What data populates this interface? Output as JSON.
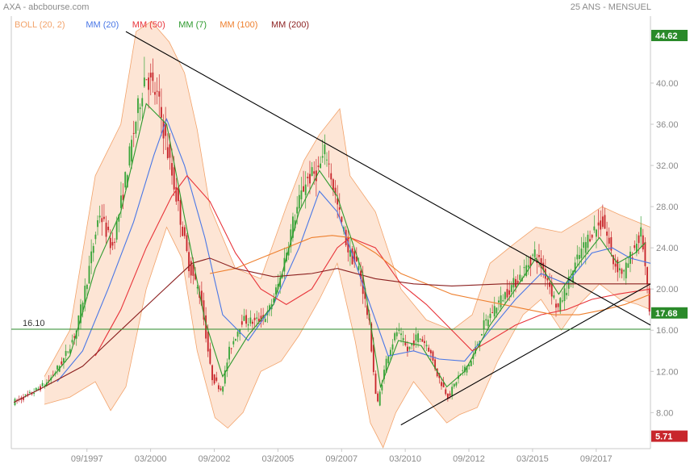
{
  "header": {
    "left": "AXA - abcbourse.com",
    "right": "25 ANS - MENSUEL"
  },
  "legend": [
    {
      "label": "BOLL (20, 2)",
      "color": "#f2a36b"
    },
    {
      "label": "MM (20)",
      "color": "#4a77e6"
    },
    {
      "label": "MM (50)",
      "color": "#e8343a"
    },
    {
      "label": "MM (7)",
      "color": "#2e9a2e"
    },
    {
      "label": "MM (100)",
      "color": "#ee7f2d"
    },
    {
      "label": "MM (200)",
      "color": "#8b1f1f"
    }
  ],
  "colors": {
    "up_candle": "#3aa53a",
    "down_candle": "#c8262c",
    "boll_fill": "#fde5d5",
    "boll_line": "#f2a36b",
    "support_line": "#2a8a2a",
    "trendline": "#000000",
    "high_box": "#2a8a2a",
    "last_box": "#2a8a2a",
    "low_box": "#c8262c"
  },
  "chart_data": {
    "type": "candlestick",
    "title": "AXA",
    "x_tick_labels": [
      "09/1997",
      "03/2000",
      "09/2002",
      "03/2005",
      "09/2007",
      "03/2010",
      "09/2012",
      "03/2015",
      "09/2017"
    ],
    "y_ticks": [
      8.0,
      12.0,
      16.0,
      20.0,
      24.0,
      28.0,
      32.0,
      36.0,
      40.0
    ],
    "y_tick_labels": [
      "8.00",
      "12.00",
      "16.00",
      "20.00",
      "24.00",
      "28.00",
      "32.00",
      "36.00",
      "40.00"
    ],
    "ylim": [
      4.5,
      46.5
    ],
    "xlim": [
      1994.7,
      2019.8
    ],
    "grid": false,
    "legend_position": "top-left",
    "support_level": {
      "value": 16.1,
      "label": "16.10"
    },
    "high_marker": {
      "value": 44.62,
      "label": "44.62"
    },
    "last_marker": {
      "value": 17.68,
      "label": "17.68"
    },
    "low_marker": {
      "value": 5.71,
      "label": "5.71"
    },
    "trendlines": [
      {
        "name": "descending resistance",
        "points": [
          [
            1999.2,
            45.0
          ],
          [
            2019.8,
            16.5
          ]
        ]
      },
      {
        "name": "ascending support",
        "points": [
          [
            2010.0,
            6.8
          ],
          [
            2019.8,
            20.5
          ]
        ]
      }
    ],
    "price_anchors": [
      [
        1994.8,
        9.0
      ],
      [
        1995.5,
        9.8
      ],
      [
        1996.2,
        11.0
      ],
      [
        1996.8,
        13.2
      ],
      [
        1997.3,
        16.0
      ],
      [
        1997.8,
        22.0
      ],
      [
        1998.2,
        27.5
      ],
      [
        1998.7,
        24.0
      ],
      [
        1999.1,
        29.0
      ],
      [
        1999.6,
        36.0
      ],
      [
        2000.0,
        41.0
      ],
      [
        2000.5,
        38.5
      ],
      [
        2000.9,
        33.0
      ],
      [
        2001.3,
        28.0
      ],
      [
        2001.7,
        22.5
      ],
      [
        2002.2,
        19.0
      ],
      [
        2002.6,
        11.5
      ],
      [
        2003.0,
        10.2
      ],
      [
        2003.3,
        14.0
      ],
      [
        2003.8,
        17.0
      ],
      [
        2004.3,
        16.8
      ],
      [
        2004.8,
        17.5
      ],
      [
        2005.3,
        21.0
      ],
      [
        2005.8,
        26.5
      ],
      [
        2006.3,
        30.5
      ],
      [
        2006.8,
        31.5
      ],
      [
        2007.1,
        33.5
      ],
      [
        2007.5,
        28.5
      ],
      [
        2008.0,
        23.5
      ],
      [
        2008.4,
        22.0
      ],
      [
        2008.8,
        16.5
      ],
      [
        2009.1,
        8.5
      ],
      [
        2009.5,
        13.5
      ],
      [
        2009.9,
        16.0
      ],
      [
        2010.3,
        14.0
      ],
      [
        2010.7,
        15.5
      ],
      [
        2011.1,
        14.5
      ],
      [
        2011.5,
        11.5
      ],
      [
        2011.9,
        9.5
      ],
      [
        2012.3,
        11.5
      ],
      [
        2012.8,
        13.0
      ],
      [
        2013.3,
        16.5
      ],
      [
        2013.8,
        18.5
      ],
      [
        2014.3,
        20.0
      ],
      [
        2014.8,
        21.5
      ],
      [
        2015.3,
        23.5
      ],
      [
        2015.8,
        21.0
      ],
      [
        2016.2,
        18.0
      ],
      [
        2016.6,
        20.5
      ],
      [
        2017.0,
        23.0
      ],
      [
        2017.5,
        25.5
      ],
      [
        2018.0,
        26.5
      ],
      [
        2018.4,
        22.5
      ],
      [
        2018.8,
        21.5
      ],
      [
        2019.2,
        24.0
      ],
      [
        2019.5,
        25.5
      ],
      [
        2019.8,
        17.7
      ]
    ],
    "moving_averages": [
      {
        "name": "MM (20)",
        "points": [
          [
            1996.5,
            11.0
          ],
          [
            1997.5,
            14.0
          ],
          [
            1998.5,
            20.0
          ],
          [
            1999.5,
            26.5
          ],
          [
            2000.3,
            33.0
          ],
          [
            2000.8,
            36.5
          ],
          [
            2001.5,
            32.0
          ],
          [
            2002.3,
            25.0
          ],
          [
            2003.0,
            17.5
          ],
          [
            2004.0,
            15.0
          ],
          [
            2005.0,
            18.5
          ],
          [
            2006.0,
            24.0
          ],
          [
            2006.8,
            29.5
          ],
          [
            2007.5,
            27.5
          ],
          [
            2008.5,
            20.5
          ],
          [
            2009.5,
            13.5
          ],
          [
            2010.5,
            14.0
          ],
          [
            2011.5,
            13.2
          ],
          [
            2012.5,
            13.0
          ],
          [
            2013.5,
            16.0
          ],
          [
            2014.5,
            19.0
          ],
          [
            2015.5,
            21.5
          ],
          [
            2016.5,
            20.5
          ],
          [
            2017.5,
            23.5
          ],
          [
            2018.3,
            24.0
          ],
          [
            2019.0,
            23.0
          ],
          [
            2019.8,
            22.5
          ]
        ]
      },
      {
        "name": "MM (50)",
        "points": [
          [
            1998.0,
            13.5
          ],
          [
            1999.0,
            18.0
          ],
          [
            2000.0,
            24.0
          ],
          [
            2001.0,
            29.0
          ],
          [
            2001.6,
            31.0
          ],
          [
            2002.5,
            28.5
          ],
          [
            2003.5,
            23.5
          ],
          [
            2004.5,
            20.0
          ],
          [
            2005.5,
            18.5
          ],
          [
            2006.5,
            20.0
          ],
          [
            2007.5,
            24.0
          ],
          [
            2008.0,
            25.0
          ],
          [
            2009.0,
            24.0
          ],
          [
            2010.0,
            20.5
          ],
          [
            2011.0,
            18.5
          ],
          [
            2012.0,
            16.0
          ],
          [
            2012.8,
            14.0
          ],
          [
            2013.5,
            15.0
          ],
          [
            2014.5,
            16.5
          ],
          [
            2015.5,
            17.5
          ],
          [
            2016.5,
            18.0
          ],
          [
            2017.5,
            19.0
          ],
          [
            2018.5,
            19.5
          ],
          [
            2019.8,
            20.0
          ]
        ]
      },
      {
        "name": "MM (100)",
        "points": [
          [
            2002.5,
            21.5
          ],
          [
            2003.5,
            22.0
          ],
          [
            2004.5,
            23.0
          ],
          [
            2005.5,
            24.0
          ],
          [
            2006.5,
            25.0
          ],
          [
            2007.3,
            25.2
          ],
          [
            2008.0,
            25.0
          ],
          [
            2009.0,
            23.5
          ],
          [
            2010.0,
            21.5
          ],
          [
            2011.0,
            20.5
          ],
          [
            2012.0,
            19.5
          ],
          [
            2013.0,
            19.0
          ],
          [
            2014.0,
            18.5
          ],
          [
            2015.0,
            18.0
          ],
          [
            2016.0,
            17.5
          ],
          [
            2017.0,
            17.5
          ],
          [
            2018.0,
            18.0
          ],
          [
            2018.8,
            18.5
          ],
          [
            2019.8,
            19.5
          ]
        ]
      },
      {
        "name": "MM (200)",
        "points": [
          [
            1994.8,
            9.0
          ],
          [
            1996.0,
            10.5
          ],
          [
            1997.5,
            12.5
          ],
          [
            1999.0,
            16.0
          ],
          [
            2000.5,
            19.5
          ],
          [
            2001.8,
            22.5
          ],
          [
            2002.5,
            23.0
          ],
          [
            2003.5,
            22.0
          ],
          [
            2005.0,
            21.2
          ],
          [
            2006.5,
            21.5
          ],
          [
            2007.5,
            22.0
          ],
          [
            2009.0,
            21.0
          ],
          [
            2010.5,
            20.5
          ],
          [
            2012.0,
            20.3
          ],
          [
            2014.0,
            20.5
          ],
          [
            2016.0,
            20.5
          ],
          [
            2018.0,
            20.5
          ],
          [
            2019.8,
            20.5
          ]
        ]
      },
      {
        "name": "MM (7)",
        "points": [
          [
            1996.0,
            10.5
          ],
          [
            1997.0,
            13.5
          ],
          [
            1998.0,
            22.0
          ],
          [
            1999.0,
            27.5
          ],
          [
            2000.0,
            38.0
          ],
          [
            2000.8,
            36.0
          ],
          [
            2001.5,
            27.0
          ],
          [
            2002.3,
            17.0
          ],
          [
            2003.0,
            11.5
          ],
          [
            2004.0,
            15.5
          ],
          [
            2005.0,
            18.5
          ],
          [
            2006.0,
            27.5
          ],
          [
            2006.8,
            31.5
          ],
          [
            2007.5,
            29.0
          ],
          [
            2008.5,
            21.5
          ],
          [
            2009.2,
            10.5
          ],
          [
            2009.9,
            15.0
          ],
          [
            2010.8,
            14.5
          ],
          [
            2011.8,
            10.5
          ],
          [
            2012.5,
            12.0
          ],
          [
            2013.5,
            16.5
          ],
          [
            2014.5,
            20.0
          ],
          [
            2015.3,
            23.0
          ],
          [
            2016.2,
            19.5
          ],
          [
            2017.0,
            22.5
          ],
          [
            2017.8,
            25.0
          ],
          [
            2018.5,
            22.5
          ],
          [
            2019.2,
            23.5
          ],
          [
            2019.6,
            24.5
          ]
        ]
      }
    ],
    "bollinger": {
      "upper": [
        [
          1996.0,
          11.5
        ],
        [
          1997.0,
          16.0
        ],
        [
          1998.0,
          31.0
        ],
        [
          1999.0,
          36.0
        ],
        [
          1999.6,
          45.0
        ],
        [
          2000.2,
          46.0
        ],
        [
          2000.9,
          44.0
        ],
        [
          2001.5,
          41.0
        ],
        [
          2002.0,
          35.5
        ],
        [
          2002.5,
          28.0
        ],
        [
          2003.5,
          22.0
        ],
        [
          2004.5,
          21.0
        ],
        [
          2005.5,
          28.0
        ],
        [
          2006.2,
          32.5
        ],
        [
          2006.8,
          35.0
        ],
        [
          2007.6,
          37.5
        ],
        [
          2008.0,
          31.0
        ],
        [
          2009.0,
          27.5
        ],
        [
          2010.0,
          20.0
        ],
        [
          2011.0,
          17.0
        ],
        [
          2012.0,
          16.0
        ],
        [
          2012.8,
          17.5
        ],
        [
          2013.5,
          22.5
        ],
        [
          2014.5,
          24.5
        ],
        [
          2015.3,
          26.0
        ],
        [
          2016.3,
          25.5
        ],
        [
          2017.3,
          27.0
        ],
        [
          2017.9,
          28.0
        ],
        [
          2018.6,
          27.2
        ],
        [
          2019.3,
          26.5
        ],
        [
          2019.8,
          26.0
        ]
      ],
      "lower": [
        [
          1996.0,
          8.8
        ],
        [
          1997.0,
          9.5
        ],
        [
          1998.0,
          11.0
        ],
        [
          1998.6,
          8.2
        ],
        [
          1999.2,
          10.5
        ],
        [
          2000.0,
          20.0
        ],
        [
          2000.8,
          26.0
        ],
        [
          2001.4,
          23.0
        ],
        [
          2002.0,
          14.0
        ],
        [
          2002.7,
          7.5
        ],
        [
          2003.2,
          6.5
        ],
        [
          2003.8,
          8.0
        ],
        [
          2004.5,
          12.0
        ],
        [
          2005.3,
          13.0
        ],
        [
          2006.0,
          15.5
        ],
        [
          2006.8,
          19.0
        ],
        [
          2007.5,
          22.5
        ],
        [
          2008.2,
          15.0
        ],
        [
          2008.8,
          7.0
        ],
        [
          2009.3,
          4.6
        ],
        [
          2009.8,
          8.0
        ],
        [
          2010.5,
          11.0
        ],
        [
          2011.3,
          8.5
        ],
        [
          2011.8,
          7.0
        ],
        [
          2012.3,
          7.8
        ],
        [
          2013.0,
          8.5
        ],
        [
          2013.8,
          13.0
        ],
        [
          2014.8,
          17.5
        ],
        [
          2015.5,
          19.0
        ],
        [
          2016.3,
          16.0
        ],
        [
          2017.0,
          18.5
        ],
        [
          2017.8,
          20.5
        ],
        [
          2018.6,
          19.0
        ],
        [
          2019.3,
          18.5
        ],
        [
          2019.8,
          18.0
        ]
      ]
    }
  }
}
